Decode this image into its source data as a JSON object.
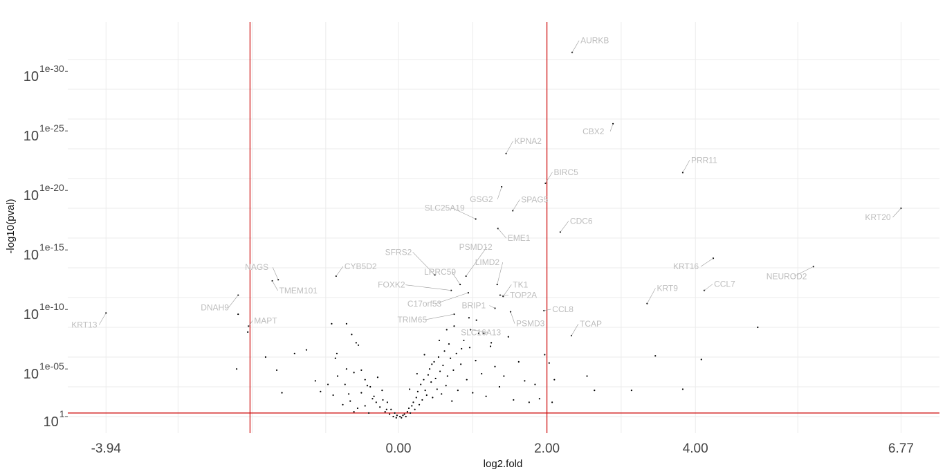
{
  "chart_data": {
    "type": "scatter",
    "title": "",
    "xlabel": "log2.fold",
    "ylabel": "-log10(pval)",
    "xlim": [
      -4.2,
      7.1
    ],
    "ylim": [
      0,
      33
    ],
    "y_scale": "p-value exponent (10^-k), plotted as k",
    "grid": true,
    "x_ticks": [
      {
        "value": -3.94,
        "label": "-3.94"
      },
      {
        "value": 0,
        "label": "0.00"
      },
      {
        "value": 2,
        "label": "2.00"
      },
      {
        "value": 4,
        "label": "4.00"
      },
      {
        "value": 6.77,
        "label": "6.77"
      }
    ],
    "y_ticks": [
      {
        "value": 1,
        "base": "10",
        "exp": "1"
      },
      {
        "value": 5,
        "base": "10",
        "exp": "1e-05"
      },
      {
        "value": 10,
        "base": "10",
        "exp": "1e-10"
      },
      {
        "value": 15,
        "base": "10",
        "exp": "1e-15"
      },
      {
        "value": 20,
        "base": "10",
        "exp": "1e-20"
      },
      {
        "value": 25,
        "base": "10",
        "exp": "1e-25"
      },
      {
        "value": 30,
        "base": "10",
        "exp": "1e-30"
      }
    ],
    "threshold_lines": {
      "x": [
        -2,
        2
      ],
      "y": 1.3,
      "color": "#cc0000"
    },
    "point_color": "#000000",
    "label_color": "#bdbdbd",
    "labeled_points": [
      {
        "gene": "AURKB",
        "x": 2.34,
        "y": 31.6
      },
      {
        "gene": "CBX2",
        "x": 2.89,
        "y": 25.6
      },
      {
        "gene": "KPNA2",
        "x": 1.45,
        "y": 23.1
      },
      {
        "gene": "PRR11",
        "x": 3.83,
        "y": 21.5
      },
      {
        "gene": "BIRC5",
        "x": 1.98,
        "y": 20.6
      },
      {
        "gene": "GSG2",
        "x": 1.39,
        "y": 20.3
      },
      {
        "gene": "SPAG5",
        "x": 1.54,
        "y": 18.3
      },
      {
        "gene": "KRT20",
        "x": 6.77,
        "y": 18.5
      },
      {
        "gene": "SLC25A19",
        "x": 1.04,
        "y": 17.6
      },
      {
        "gene": "EME1",
        "x": 1.34,
        "y": 16.8
      },
      {
        "gene": "CDC6",
        "x": 2.18,
        "y": 16.5
      },
      {
        "gene": "PSMD12",
        "x": 0.91,
        "y": 12.8
      },
      {
        "gene": "SFRS2",
        "x": 0.49,
        "y": 12.9
      },
      {
        "gene": "LRRC59",
        "x": 0.83,
        "y": 12.1
      },
      {
        "gene": "KRT16",
        "x": 4.24,
        "y": 14.3
      },
      {
        "gene": "NEUROD2",
        "x": 5.59,
        "y": 13.6
      },
      {
        "gene": "CYB5D2",
        "x": -0.84,
        "y": 12.8
      },
      {
        "gene": "NAGS",
        "x": -1.62,
        "y": 12.5
      },
      {
        "gene": "LIMD2",
        "x": 1.33,
        "y": 12.1
      },
      {
        "gene": "TK1",
        "x": 1.41,
        "y": 11.1
      },
      {
        "gene": "FOXK2",
        "x": 0.71,
        "y": 11.6
      },
      {
        "gene": "C17orf53",
        "x": 0.94,
        "y": 11.4
      },
      {
        "gene": "TMEM101",
        "x": -1.7,
        "y": 12.4
      },
      {
        "gene": "CCL7",
        "x": 4.12,
        "y": 11.6
      },
      {
        "gene": "TOP2A",
        "x": 1.37,
        "y": 11.2
      },
      {
        "gene": "KRT9",
        "x": 3.35,
        "y": 10.5
      },
      {
        "gene": "DNAH9",
        "x": -2.16,
        "y": 11.2
      },
      {
        "gene": "BRIP1",
        "x": 1.3,
        "y": 10.1
      },
      {
        "gene": "CCL8",
        "x": 1.96,
        "y": 9.9
      },
      {
        "gene": "KRT13",
        "x": -3.94,
        "y": 9.7
      },
      {
        "gene": "TRIM65",
        "x": 0.75,
        "y": 9.6
      },
      {
        "gene": "PSMD3",
        "x": 1.51,
        "y": 9.8
      },
      {
        "gene": "MAPT",
        "x": -2.02,
        "y": 8.6
      },
      {
        "gene": "TCAP",
        "x": 2.33,
        "y": 7.8
      },
      {
        "gene": "SLC16A13",
        "x": 0.97,
        "y": 8.3
      }
    ],
    "other_points": [
      [
        -2.16,
        9.6
      ],
      [
        -2.03,
        8.1
      ],
      [
        -2.18,
        5.0
      ],
      [
        -1.79,
        6.0
      ],
      [
        -1.64,
        4.9
      ],
      [
        -1.57,
        3.0
      ],
      [
        -1.4,
        6.3
      ],
      [
        -1.24,
        6.6
      ],
      [
        -0.9,
        8.8
      ],
      [
        -0.7,
        8.8
      ],
      [
        -0.63,
        7.9
      ],
      [
        -0.57,
        7.2
      ],
      [
        -0.54,
        7.0
      ],
      [
        -0.83,
        6.3
      ],
      [
        -0.85,
        5.9
      ],
      [
        -1.12,
        4.0
      ],
      [
        -0.95,
        3.7
      ],
      [
        -1.05,
        3.1
      ],
      [
        -0.82,
        4.4
      ],
      [
        -0.72,
        3.7
      ],
      [
        -0.67,
        2.9
      ],
      [
        -0.5,
        4.9
      ],
      [
        -0.45,
        4.1
      ],
      [
        -0.38,
        3.5
      ],
      [
        -0.33,
        2.7
      ],
      [
        -0.3,
        2.2
      ],
      [
        -0.28,
        4.3
      ],
      [
        -0.25,
        1.8
      ],
      [
        -0.21,
        2.4
      ],
      [
        -0.18,
        1.4
      ],
      [
        -0.16,
        1.6
      ],
      [
        -0.12,
        1.2
      ],
      [
        -0.1,
        1.6
      ],
      [
        -0.07,
        1.0
      ],
      [
        -0.05,
        1.3
      ],
      [
        -0.03,
        0.9
      ],
      [
        -0.02,
        1.1
      ],
      [
        -0.6,
        1.4
      ],
      [
        -0.45,
        1.9
      ],
      [
        -0.4,
        1.3
      ],
      [
        -0.35,
        2.5
      ],
      [
        -0.55,
        1.7
      ],
      [
        -0.65,
        2.3
      ],
      [
        -0.75,
        2.0
      ],
      [
        -0.88,
        2.8
      ],
      [
        -0.5,
        3.0
      ],
      [
        -0.42,
        3.6
      ],
      [
        -0.22,
        3.2
      ],
      [
        -0.15,
        2.2
      ],
      [
        -0.7,
        5.0
      ],
      [
        -0.6,
        4.7
      ],
      [
        0.02,
        1.0
      ],
      [
        0.04,
        0.9
      ],
      [
        0.06,
        1.1
      ],
      [
        0.08,
        1.2
      ],
      [
        0.1,
        1.0
      ],
      [
        0.12,
        1.4
      ],
      [
        0.14,
        1.7
      ],
      [
        0.16,
        1.3
      ],
      [
        0.18,
        1.9
      ],
      [
        0.2,
        2.2
      ],
      [
        0.22,
        1.6
      ],
      [
        0.24,
        2.6
      ],
      [
        0.26,
        3.1
      ],
      [
        0.28,
        2.0
      ],
      [
        0.3,
        3.7
      ],
      [
        0.32,
        2.4
      ],
      [
        0.34,
        4.1
      ],
      [
        0.36,
        3.2
      ],
      [
        0.38,
        2.8
      ],
      [
        0.4,
        4.5
      ],
      [
        0.42,
        5.0
      ],
      [
        0.44,
        3.9
      ],
      [
        0.46,
        2.6
      ],
      [
        0.48,
        5.6
      ],
      [
        0.5,
        4.2
      ],
      [
        0.52,
        3.3
      ],
      [
        0.54,
        6.0
      ],
      [
        0.56,
        4.8
      ],
      [
        0.58,
        2.9
      ],
      [
        0.6,
        5.3
      ],
      [
        0.62,
        6.5
      ],
      [
        0.64,
        3.6
      ],
      [
        0.66,
        4.4
      ],
      [
        0.68,
        7.1
      ],
      [
        0.7,
        5.9
      ],
      [
        0.72,
        2.3
      ],
      [
        0.74,
        4.9
      ],
      [
        0.78,
        6.3
      ],
      [
        0.8,
        3.2
      ],
      [
        0.84,
        5.4
      ],
      [
        0.88,
        7.4
      ],
      [
        0.92,
        4.1
      ],
      [
        0.96,
        6.8
      ],
      [
        1.0,
        3.0
      ],
      [
        1.04,
        5.7
      ],
      [
        1.08,
        8.0
      ],
      [
        1.12,
        4.6
      ],
      [
        1.18,
        2.7
      ],
      [
        1.24,
        6.9
      ],
      [
        1.3,
        5.2
      ],
      [
        1.36,
        3.5
      ],
      [
        1.42,
        4.4
      ],
      [
        1.48,
        7.7
      ],
      [
        1.55,
        2.4
      ],
      [
        1.62,
        5.6
      ],
      [
        1.7,
        4.0
      ],
      [
        1.76,
        2.2
      ],
      [
        1.84,
        3.7
      ],
      [
        1.9,
        2.5
      ],
      [
        1.97,
        6.2
      ],
      [
        2.03,
        5.5
      ],
      [
        2.07,
        2.2
      ],
      [
        2.1,
        4.1
      ],
      [
        2.54,
        4.4
      ],
      [
        2.64,
        3.2
      ],
      [
        3.14,
        3.2
      ],
      [
        3.46,
        6.1
      ],
      [
        4.08,
        5.8
      ],
      [
        4.84,
        8.5
      ],
      [
        3.83,
        3.3
      ],
      [
        0.35,
        6.2
      ],
      [
        0.55,
        7.4
      ],
      [
        0.65,
        8.3
      ],
      [
        0.45,
        5.4
      ],
      [
        0.25,
        4.6
      ],
      [
        0.15,
        3.3
      ],
      [
        0.75,
        8.6
      ],
      [
        1.05,
        9.1
      ],
      [
        0.85,
        6.7
      ],
      [
        0.95,
        9.3
      ],
      [
        1.15,
        8.0
      ],
      [
        1.25,
        7.2
      ]
    ]
  }
}
